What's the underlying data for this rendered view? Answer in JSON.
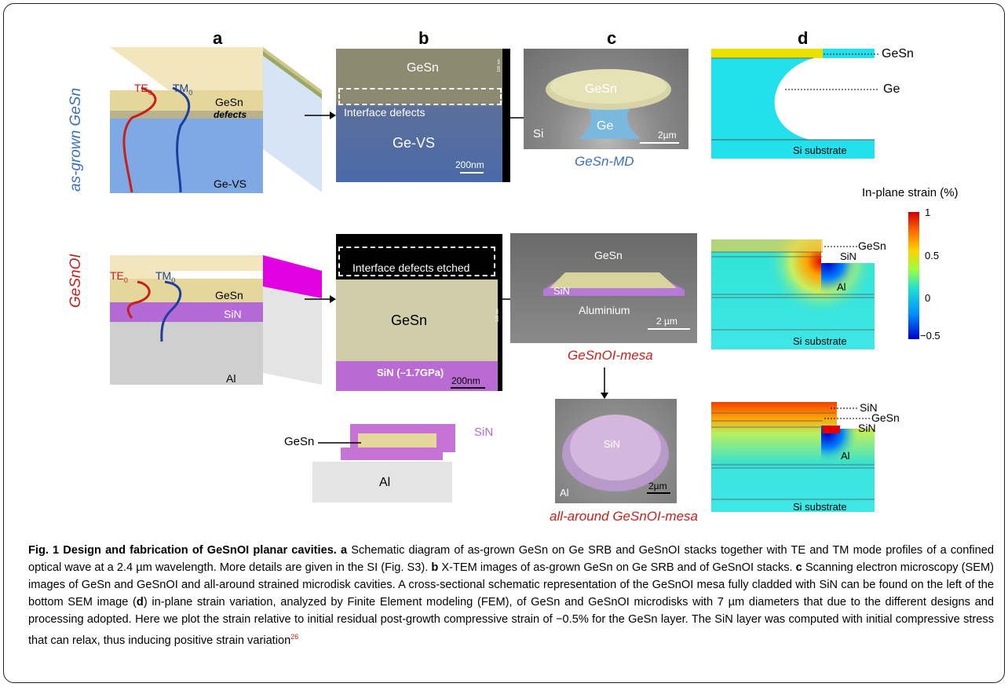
{
  "panels": {
    "a": "a",
    "b": "b",
    "c": "c",
    "d": "d"
  },
  "panel_a": {
    "row_label_top": "as-grown GeSn",
    "row_label_bottom": "GeSnOI",
    "te0": "TE",
    "tm0": "TM",
    "mode_sub": "0",
    "top": {
      "gesn": "GeSn",
      "defects": "defects",
      "gevs": "Ge-VS"
    },
    "bottom": {
      "gesn": "GeSn",
      "sin": "SiN",
      "al": "Al"
    },
    "schematic": {
      "gesn": "GeSn",
      "sin": "SiN",
      "al": "Al"
    }
  },
  "panel_b": {
    "top": {
      "gesn": "GeSn",
      "interface": "Interface defects",
      "gevs": "Ge-VS",
      "scale": "200nm",
      "vscale": "100 nm"
    },
    "bottom": {
      "interface": "Interface defects etched",
      "gesn": "GeSn",
      "sin": "SiN (–1.7GPa)",
      "scale": "200nm",
      "vscale": "100 nm"
    }
  },
  "panel_c": {
    "top": {
      "gesn": "GeSn",
      "ge": "Ge",
      "si": "Si",
      "scale": "2µm",
      "caption": "GeSn-MD"
    },
    "mid": {
      "gesn": "GeSn",
      "sin": "SiN",
      "al": "Aluminium",
      "scale": "2 µm",
      "caption": "GeSnOI-mesa"
    },
    "bottom": {
      "sin": "SiN",
      "al": "Al",
      "scale": "2µm",
      "caption": "all-around GeSnOI-mesa"
    }
  },
  "panel_d": {
    "top": {
      "gesn": "GeSn",
      "ge": "Ge",
      "si": "Si substrate"
    },
    "mid": {
      "gesn": "GeSn",
      "sin": "SiN",
      "al": "Al",
      "si": "Si substrate"
    },
    "bottom": {
      "sin1": "SiN",
      "gesn": "GeSn",
      "sin2": "SiN",
      "al": "Al",
      "si": "Si substrate"
    },
    "colorbar": {
      "title": "In-plane strain (%)",
      "ticks": [
        "1",
        "0.5",
        "0",
        "−0.5"
      ]
    }
  },
  "caption": {
    "fig": "Fig. 1",
    "title": "Design and fabrication of GeSnOI planar cavities.",
    "a_label": "a",
    "a_text": "Schematic diagram of as-grown GeSn on Ge SRB and GeSnOI stacks together with TE and TM mode profiles of a confined optical wave at a 2.4 µm wavelength. More details are given in the SI (Fig. S3).",
    "b_label": "b",
    "b_text": "X-TEM images of as-grown GeSn on Ge SRB and of GeSnOI stacks.",
    "c_label": "c",
    "c_text": "Scanning electron microscopy (SEM) images of GeSn and GeSnOI and all-around strained microdisk cavities. A cross-sectional schematic representation of the GeSnOI mesa fully cladded with SiN can be found on the left of the bottom SEM image (",
    "d_label": "d",
    "d_text": ") in-plane strain variation, analyzed by Finite Element modeling (FEM), of GeSn and GeSnOI microdisks with 7 µm diameters that due to the different designs and processing adopted. Here we plot the strain relative to initial residual post-growth compressive strain of −0.5% for the GeSn layer. The SiN layer was computed with initial compressive stress that can relax, thus inducing positive strain variation",
    "ref": "26"
  }
}
